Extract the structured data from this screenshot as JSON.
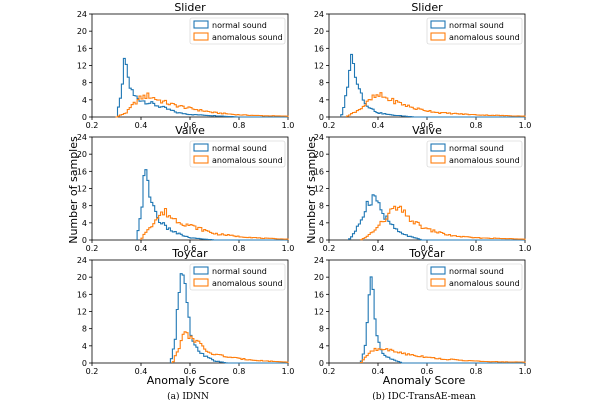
{
  "figure": {
    "ylabel": "Number of samples",
    "xlabel": "Anomaly Score",
    "captions": [
      "(a) IDNN",
      "(b) IDC-TransAE-mean"
    ],
    "legend": [
      "normal sound",
      "anomalous sound"
    ],
    "colors": {
      "normal": "#1f77b4",
      "anomalous": "#ff7f0e"
    }
  },
  "chart_data": [
    {
      "type": "histogram",
      "title": "Slider",
      "method": "IDNN",
      "row": 0,
      "col": 0,
      "xlim": [
        0.2,
        1.0
      ],
      "ylim": [
        0,
        24
      ],
      "xticks": [
        "0.2",
        "0.4",
        "0.6",
        "0.8",
        "1.0"
      ],
      "yticks": [
        "0",
        "4",
        "8",
        "12",
        "16",
        "20",
        "24"
      ],
      "legend_position": "top-right",
      "series": [
        {
          "name": "normal sound",
          "curve": [
            [
              0.3,
              0
            ],
            [
              0.32,
              5
            ],
            [
              0.33,
              12
            ],
            [
              0.34,
              12.5
            ],
            [
              0.35,
              8
            ],
            [
              0.37,
              5
            ],
            [
              0.4,
              4
            ],
            [
              0.45,
              3
            ],
            [
              0.5,
              2
            ],
            [
              0.55,
              1
            ],
            [
              0.6,
              0.6
            ],
            [
              0.7,
              0.3
            ],
            [
              0.8,
              0
            ]
          ]
        },
        {
          "name": "anomalous sound",
          "curve": [
            [
              0.3,
              0
            ],
            [
              0.34,
              1
            ],
            [
              0.37,
              3
            ],
            [
              0.4,
              4.5
            ],
            [
              0.43,
              5
            ],
            [
              0.47,
              4
            ],
            [
              0.52,
              3
            ],
            [
              0.6,
              2
            ],
            [
              0.7,
              1
            ],
            [
              0.8,
              0.5
            ],
            [
              0.9,
              0.3
            ],
            [
              1.0,
              0.2
            ]
          ]
        }
      ]
    },
    {
      "type": "histogram",
      "title": "Slider",
      "method": "IDC-TransAE-mean",
      "row": 0,
      "col": 1,
      "xlim": [
        0.2,
        1.0
      ],
      "ylim": [
        0,
        24
      ],
      "xticks": [
        "0.2",
        "0.4",
        "0.6",
        "0.8",
        "1.0"
      ],
      "yticks": [
        "0",
        "4",
        "8",
        "12",
        "16",
        "20",
        "24"
      ],
      "legend_position": "top-right",
      "series": [
        {
          "name": "normal sound",
          "curve": [
            [
              0.25,
              0
            ],
            [
              0.27,
              5
            ],
            [
              0.28,
              10
            ],
            [
              0.29,
              14
            ],
            [
              0.3,
              12
            ],
            [
              0.32,
              8
            ],
            [
              0.34,
              4
            ],
            [
              0.37,
              2
            ],
            [
              0.4,
              1
            ],
            [
              0.45,
              0.5
            ],
            [
              0.55,
              0
            ]
          ]
        },
        {
          "name": "anomalous sound",
          "curve": [
            [
              0.27,
              0
            ],
            [
              0.3,
              1
            ],
            [
              0.33,
              2
            ],
            [
              0.36,
              3.5
            ],
            [
              0.38,
              4.5
            ],
            [
              0.41,
              5
            ],
            [
              0.45,
              4
            ],
            [
              0.5,
              3
            ],
            [
              0.55,
              2
            ],
            [
              0.65,
              1
            ],
            [
              0.8,
              0.5
            ],
            [
              1.0,
              0.2
            ]
          ]
        }
      ]
    },
    {
      "type": "histogram",
      "title": "Valve",
      "method": "IDNN",
      "row": 1,
      "col": 0,
      "xlim": [
        0.2,
        1.0
      ],
      "ylim": [
        0,
        24
      ],
      "xticks": [
        "0.2",
        "0.4",
        "0.6",
        "0.8",
        "1.0"
      ],
      "yticks": [
        "0",
        "4",
        "8",
        "12",
        "16",
        "20",
        "24"
      ],
      "legend_position": "top-right",
      "series": [
        {
          "name": "normal sound",
          "curve": [
            [
              0.38,
              0
            ],
            [
              0.4,
              6
            ],
            [
              0.41,
              13
            ],
            [
              0.42,
              15
            ],
            [
              0.43,
              12
            ],
            [
              0.45,
              8
            ],
            [
              0.47,
              5
            ],
            [
              0.5,
              3
            ],
            [
              0.55,
              1.5
            ],
            [
              0.6,
              0.5
            ],
            [
              0.7,
              0
            ]
          ]
        },
        {
          "name": "anomalous sound",
          "curve": [
            [
              0.4,
              0
            ],
            [
              0.42,
              2
            ],
            [
              0.45,
              4
            ],
            [
              0.48,
              6
            ],
            [
              0.5,
              6.5
            ],
            [
              0.53,
              5
            ],
            [
              0.57,
              4
            ],
            [
              0.62,
              3
            ],
            [
              0.7,
              1.5
            ],
            [
              0.8,
              0.8
            ],
            [
              0.9,
              0.4
            ],
            [
              1.0,
              0.2
            ]
          ]
        }
      ]
    },
    {
      "type": "histogram",
      "title": "Valve",
      "method": "IDC-TransAE-mean",
      "row": 1,
      "col": 1,
      "xlim": [
        0.2,
        1.0
      ],
      "ylim": [
        0,
        24
      ],
      "xticks": [
        "0.2",
        "0.4",
        "0.6",
        "0.8",
        "1.0"
      ],
      "yticks": [
        "0",
        "4",
        "8",
        "12",
        "16",
        "20",
        "24"
      ],
      "legend_position": "top-right",
      "series": [
        {
          "name": "normal sound",
          "curve": [
            [
              0.28,
              0
            ],
            [
              0.31,
              2
            ],
            [
              0.34,
              6
            ],
            [
              0.36,
              9
            ],
            [
              0.38,
              10
            ],
            [
              0.4,
              9
            ],
            [
              0.42,
              6
            ],
            [
              0.45,
              4
            ],
            [
              0.48,
              2
            ],
            [
              0.52,
              1
            ],
            [
              0.58,
              0
            ]
          ]
        },
        {
          "name": "anomalous sound",
          "curve": [
            [
              0.33,
              0
            ],
            [
              0.36,
              1
            ],
            [
              0.4,
              3
            ],
            [
              0.43,
              5
            ],
            [
              0.46,
              7
            ],
            [
              0.48,
              7.5
            ],
            [
              0.51,
              6
            ],
            [
              0.55,
              4
            ],
            [
              0.6,
              2.5
            ],
            [
              0.7,
              1
            ],
            [
              0.8,
              0.5
            ],
            [
              1.0,
              0.2
            ]
          ]
        }
      ]
    },
    {
      "type": "histogram",
      "title": "Toycar",
      "method": "IDNN",
      "row": 2,
      "col": 0,
      "xlim": [
        0.2,
        1.0
      ],
      "ylim": [
        0,
        24
      ],
      "xticks": [
        "0.2",
        "0.4",
        "0.6",
        "0.8",
        "1.0"
      ],
      "yticks": [
        "0",
        "4",
        "8",
        "12",
        "16",
        "20",
        "24"
      ],
      "legend_position": "top-right",
      "series": [
        {
          "name": "normal sound",
          "curve": [
            [
              0.52,
              0
            ],
            [
              0.54,
              5
            ],
            [
              0.55,
              14
            ],
            [
              0.56,
              20.5
            ],
            [
              0.57,
              21
            ],
            [
              0.58,
              17
            ],
            [
              0.59,
              12
            ],
            [
              0.6,
              8
            ],
            [
              0.62,
              4
            ],
            [
              0.65,
              2
            ],
            [
              0.7,
              0.5
            ],
            [
              0.75,
              0
            ]
          ]
        },
        {
          "name": "anomalous sound",
          "curve": [
            [
              0.53,
              0
            ],
            [
              0.55,
              3
            ],
            [
              0.57,
              6
            ],
            [
              0.59,
              7
            ],
            [
              0.61,
              6
            ],
            [
              0.63,
              5
            ],
            [
              0.66,
              3
            ],
            [
              0.7,
              2
            ],
            [
              0.75,
              1.5
            ],
            [
              0.8,
              1
            ],
            [
              0.9,
              0.5
            ],
            [
              1.0,
              0.2
            ]
          ]
        }
      ]
    },
    {
      "type": "histogram",
      "title": "Toycar",
      "method": "IDC-TransAE-mean",
      "row": 2,
      "col": 1,
      "xlim": [
        0.2,
        1.0
      ],
      "ylim": [
        0,
        24
      ],
      "xticks": [
        "0.2",
        "0.4",
        "0.6",
        "0.8",
        "1.0"
      ],
      "yticks": [
        "0",
        "4",
        "8",
        "12",
        "16",
        "20",
        "24"
      ],
      "legend_position": "top-right",
      "series": [
        {
          "name": "normal sound",
          "curve": [
            [
              0.33,
              0
            ],
            [
              0.35,
              4
            ],
            [
              0.36,
              12
            ],
            [
              0.37,
              20
            ],
            [
              0.38,
              17
            ],
            [
              0.39,
              9
            ],
            [
              0.4,
              5
            ],
            [
              0.42,
              2
            ],
            [
              0.45,
              1
            ],
            [
              0.5,
              0
            ]
          ]
        },
        {
          "name": "anomalous sound",
          "curve": [
            [
              0.33,
              0
            ],
            [
              0.36,
              2
            ],
            [
              0.38,
              3
            ],
            [
              0.41,
              3.5
            ],
            [
              0.44,
              3
            ],
            [
              0.48,
              2.5
            ],
            [
              0.55,
              1.8
            ],
            [
              0.65,
              1
            ],
            [
              0.75,
              0.6
            ],
            [
              0.85,
              0.3
            ],
            [
              1.0,
              0.2
            ]
          ]
        }
      ]
    }
  ]
}
